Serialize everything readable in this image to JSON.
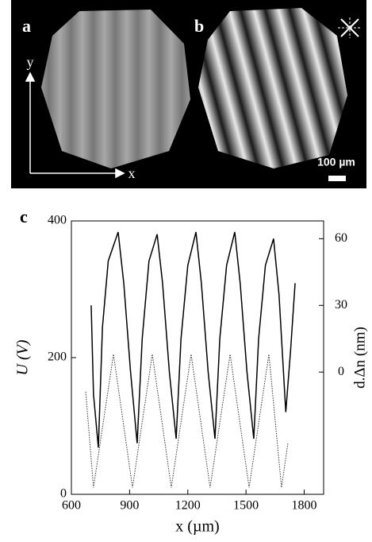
{
  "figure": {
    "labels": [
      "a",
      "b",
      "c"
    ],
    "axis_y": "y",
    "axis_x": "x",
    "scale_bar": "100 µm"
  },
  "chart_data": {
    "type": "line",
    "xlabel": "x (µm)",
    "ylabel": "U (V)",
    "y2label": "d.Δn (nm)",
    "xlim": [
      600,
      1900
    ],
    "xticks": [
      600,
      900,
      1200,
      1500,
      1800
    ],
    "ylim": [
      0,
      400
    ],
    "yticks": [
      0,
      200,
      400
    ],
    "y2lim": [
      -55,
      68
    ],
    "y2ticks": [
      0,
      30,
      60
    ],
    "series": [
      {
        "axis": "y2",
        "color": "#000000",
        "dash": false,
        "x": [
          702,
          714,
          739,
          760,
          790,
          841,
          870,
          905,
          939,
          965,
          1000,
          1042,
          1070,
          1105,
          1140,
          1165,
          1200,
          1242,
          1270,
          1305,
          1340,
          1365,
          1400,
          1442,
          1470,
          1505,
          1540,
          1565,
          1600,
          1642,
          1670,
          1705,
          1730,
          1753
        ],
        "values": [
          30,
          -10,
          -34,
          20,
          50,
          63,
          40,
          0,
          -32,
          15,
          50,
          62,
          40,
          0,
          -30,
          15,
          48,
          63,
          40,
          0,
          -30,
          15,
          48,
          63,
          40,
          0,
          -30,
          15,
          48,
          60,
          35,
          -18,
          10,
          40
        ]
      },
      {
        "axis": "y",
        "color": "#333333",
        "dash": true,
        "x": [
          674,
          714,
          817,
          915,
          1017,
          1115,
          1217,
          1315,
          1418,
          1516,
          1618,
          1683,
          1716
        ],
        "values": [
          150,
          10,
          205,
          10,
          205,
          10,
          205,
          10,
          205,
          10,
          205,
          10,
          75
        ]
      }
    ]
  }
}
